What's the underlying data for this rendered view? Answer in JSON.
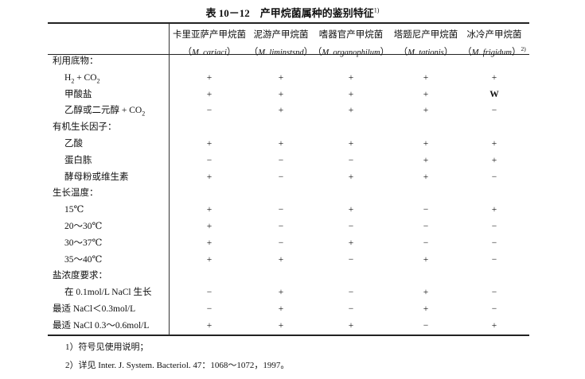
{
  "title": "表 10－12　产甲烷菌属种的鉴别特征",
  "title_note": "1)",
  "columns": [
    {
      "cn": "卡里亚萨产甲烷菌",
      "latin": "M. cariaci",
      "note": ""
    },
    {
      "cn": "泥游产甲烷菌",
      "latin": "M. liminstsnd",
      "note": ""
    },
    {
      "cn": "嗜器官产甲烷菌",
      "latin": "M. organophilum",
      "note": ""
    },
    {
      "cn": "塔题尼产甲烷菌",
      "latin": "M. tationis",
      "note": ""
    },
    {
      "cn": "冰冷产甲烷菌",
      "latin": "M. frigidum",
      "note": "2)"
    }
  ],
  "rows": [
    {
      "label": "利用底物：",
      "type": "group",
      "values": []
    },
    {
      "label": "H",
      "label_sub": "2",
      "label_tail": " + CO",
      "label_sub2": "2",
      "type": "sub",
      "values": [
        "+",
        "+",
        "+",
        "+",
        "+"
      ]
    },
    {
      "label": "甲酸盐",
      "type": "sub",
      "values": [
        "+",
        "+",
        "+",
        "+",
        "W"
      ]
    },
    {
      "label": "乙醇或二元醇 + CO",
      "label_sub": "2",
      "type": "sub",
      "values": [
        "−",
        "+",
        "+",
        "+",
        "−"
      ]
    },
    {
      "label": "有机生长因子：",
      "type": "group",
      "values": []
    },
    {
      "label": "乙酸",
      "type": "sub",
      "values": [
        "+",
        "+",
        "+",
        "+",
        "+"
      ]
    },
    {
      "label": "蛋白胨",
      "type": "sub",
      "values": [
        "−",
        "−",
        "−",
        "+",
        "+"
      ]
    },
    {
      "label": "酵母粉或维生素",
      "type": "sub",
      "values": [
        "+",
        "−",
        "+",
        "+",
        "−"
      ]
    },
    {
      "label": "生长温度：",
      "type": "group",
      "values": []
    },
    {
      "label": "15℃",
      "type": "sub",
      "values": [
        "+",
        "−",
        "+",
        "−",
        "+"
      ]
    },
    {
      "label": "20～30℃",
      "type": "sub",
      "values": [
        "+",
        "−",
        "−",
        "−",
        "−"
      ]
    },
    {
      "label": "30～37℃",
      "type": "sub",
      "values": [
        "+",
        "−",
        "+",
        "−",
        "−"
      ]
    },
    {
      "label": "35～40℃",
      "type": "sub",
      "values": [
        "+",
        "+",
        "−",
        "+",
        "−"
      ]
    },
    {
      "label": "盐浓度要求：",
      "type": "group",
      "values": []
    },
    {
      "label": "在 0.1mol/L NaCl 生长",
      "type": "sub",
      "values": [
        "−",
        "+",
        "−",
        "+",
        "−"
      ]
    },
    {
      "label": "最适 NaCl＜0.3mol/L",
      "type": "group",
      "values": [
        "−",
        "+",
        "−",
        "+",
        "−"
      ]
    },
    {
      "label": "最适 NaCl 0.3～0.6mol/L",
      "type": "group",
      "values": [
        "+",
        "+",
        "+",
        "−",
        "+"
      ]
    }
  ],
  "footnotes": [
    "1）符号见使用说明；",
    "2）详见 Inter. J. System. Bacteriol. 47：1068～1072，1997。"
  ]
}
